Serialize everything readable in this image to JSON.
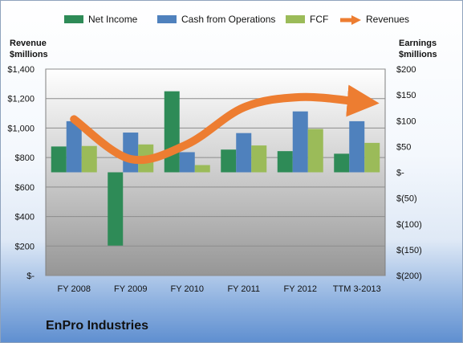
{
  "chart_data": {
    "type": "bar",
    "title": "EnPro Industries",
    "categories": [
      "FY 2008",
      "FY 2009",
      "FY 2010",
      "FY 2011",
      "FY 2012",
      "TTM 3-2013"
    ],
    "y_left": {
      "label_line1": "Revenue",
      "label_line2": "$millions",
      "range": [
        0,
        1400
      ],
      "ticks": [
        0,
        200,
        400,
        600,
        800,
        1000,
        1200,
        1400
      ],
      "tick_labels": [
        "$-",
        "$200",
        "$400",
        "$600",
        "$800",
        "$1,000",
        "$1,200",
        "$1,400"
      ]
    },
    "y_right": {
      "label_line1": "Earnings",
      "label_line2": "$millions",
      "range": [
        -200,
        200
      ],
      "ticks": [
        -200,
        -150,
        -100,
        -50,
        0,
        50,
        100,
        150,
        200
      ],
      "tick_labels": [
        "$(200)",
        "$(150)",
        "$(100)",
        "$(50)",
        "$-",
        "$50",
        "$100",
        "$150",
        "$200"
      ]
    },
    "series": [
      {
        "name": "Net Income",
        "type": "bar",
        "axis": "right",
        "color": "#2e8b57",
        "values": [
          50,
          -142,
          157,
          44,
          41,
          36
        ]
      },
      {
        "name": "Cash from Operations",
        "type": "bar",
        "axis": "right",
        "color": "#4f81bd",
        "values": [
          99,
          77,
          39,
          76,
          118,
          99
        ]
      },
      {
        "name": "FCF",
        "type": "bar",
        "axis": "right",
        "color": "#9bbb59",
        "values": [
          51,
          54,
          14,
          52,
          84,
          57
        ]
      },
      {
        "name": "Revenues",
        "type": "line",
        "axis": "left",
        "color": "#ed7d31",
        "values": [
          1060,
          790,
          890,
          1140,
          1210,
          1180
        ]
      }
    ],
    "grid": true,
    "legend_position": "top"
  }
}
